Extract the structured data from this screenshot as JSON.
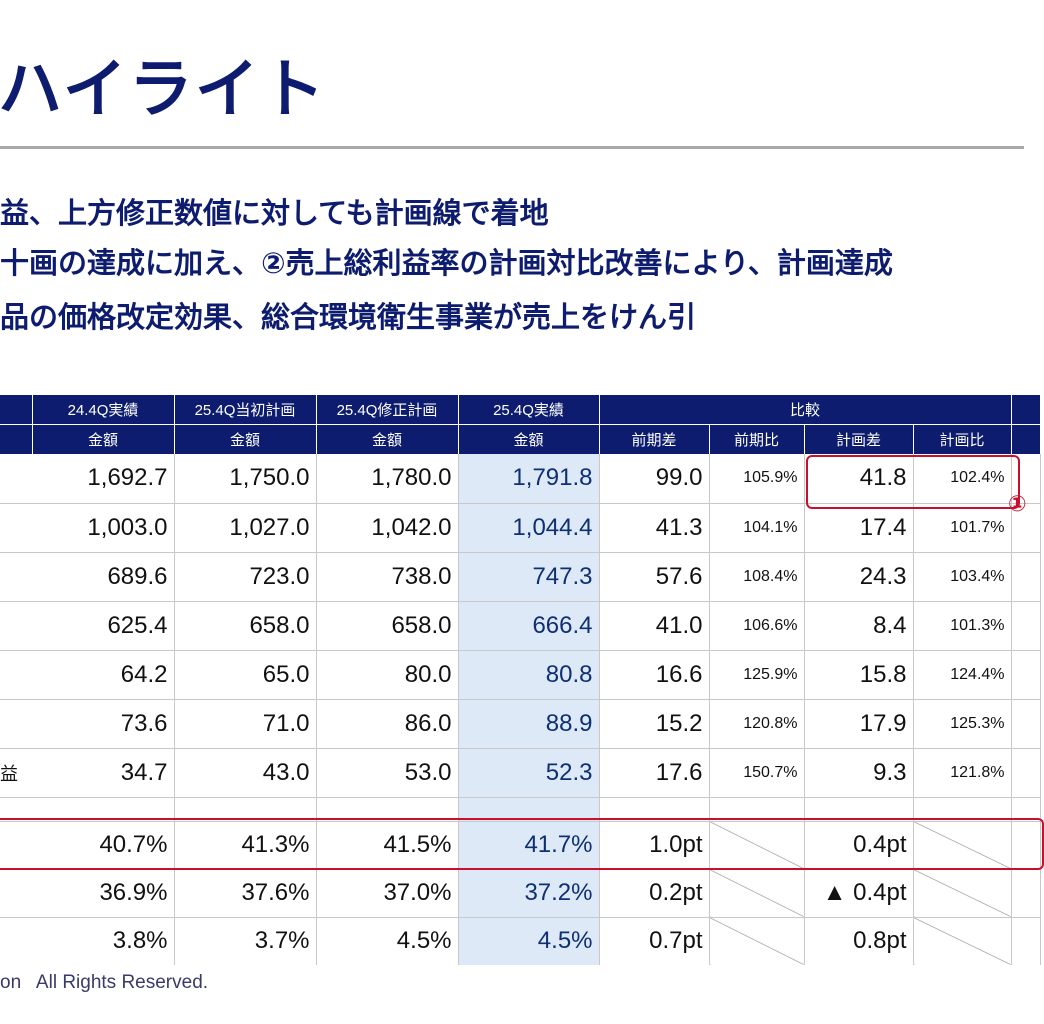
{
  "title": "ハイライト",
  "bullets": [
    "益、上方修正数値に対しても計画線で着地",
    "十画の達成に加え、②売上総利益率の計画対比改善により、計画達成",
    "品の価格改定効果、総合環境衛生事業が売上をけん引"
  ],
  "table": {
    "group_headers": [
      "24.4Q実績",
      "25.4Q当初計画",
      "25.4Q修正計画",
      "25.4Q実績",
      "比較"
    ],
    "sub_headers": [
      "金額",
      "金額",
      "金額",
      "金額",
      "前期差",
      "前期比",
      "計画差",
      "計画比"
    ],
    "rows": [
      {
        "label": "",
        "values": [
          "1,692.7",
          "1,750.0",
          "1,780.0",
          "1,791.8",
          "99.0",
          "105.9%",
          "41.8",
          "102.4%"
        ]
      },
      {
        "label": "",
        "values": [
          "1,003.0",
          "1,027.0",
          "1,042.0",
          "1,044.4",
          "41.3",
          "104.1%",
          "17.4",
          "101.7%"
        ]
      },
      {
        "label": "",
        "values": [
          "689.6",
          "723.0",
          "738.0",
          "747.3",
          "57.6",
          "108.4%",
          "24.3",
          "103.4%"
        ]
      },
      {
        "label": "",
        "values": [
          "625.4",
          "658.0",
          "658.0",
          "666.4",
          "41.0",
          "106.6%",
          "8.4",
          "101.3%"
        ]
      },
      {
        "label": "",
        "values": [
          "64.2",
          "65.0",
          "80.0",
          "80.8",
          "16.6",
          "125.9%",
          "15.8",
          "124.4%"
        ]
      },
      {
        "label": "",
        "values": [
          "73.6",
          "71.0",
          "86.0",
          "88.9",
          "15.2",
          "120.8%",
          "17.9",
          "125.3%"
        ]
      },
      {
        "label": "益",
        "values": [
          "34.7",
          "43.0",
          "53.0",
          "52.3",
          "17.6",
          "150.7%",
          "9.3",
          "121.8%"
        ]
      }
    ],
    "pct_rows": [
      {
        "label": "",
        "values": [
          "40.7%",
          "41.3%",
          "41.5%",
          "41.7%",
          "1.0pt",
          "",
          "0.4pt",
          ""
        ]
      },
      {
        "label": "",
        "values": [
          "36.9%",
          "37.6%",
          "37.0%",
          "37.2%",
          "0.2pt",
          "",
          "▲ 0.4pt",
          ""
        ]
      },
      {
        "label": "",
        "values": [
          "3.8%",
          "3.7%",
          "4.5%",
          "4.5%",
          "0.7pt",
          "",
          "0.8pt",
          ""
        ]
      }
    ]
  },
  "annotation_marker": "①",
  "footer": "on   All Rights Reserved.",
  "colors": {
    "navy": "#0d1c6e",
    "actual_bg": "#dde9f6",
    "highlight_red": "#c8102e"
  }
}
